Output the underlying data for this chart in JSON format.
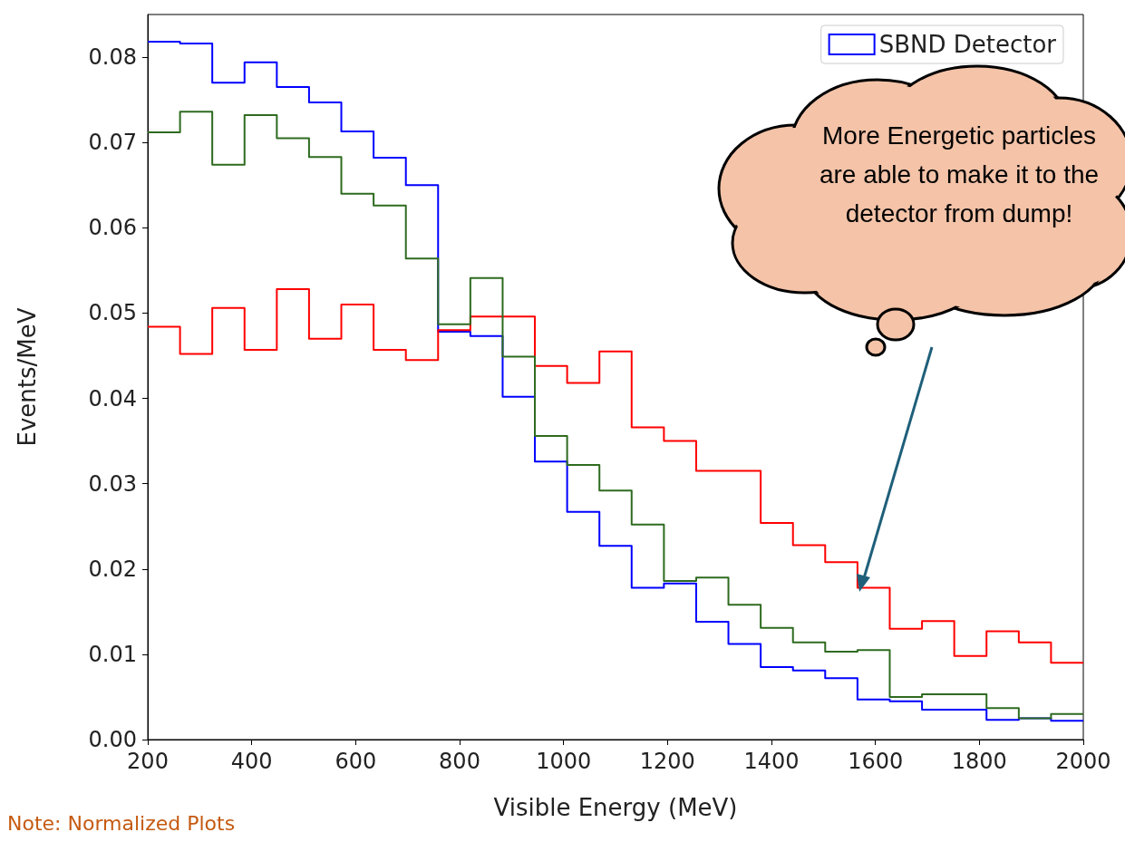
{
  "chart_data": {
    "type": "histogram",
    "xlabel": "Visible Energy (MeV)",
    "ylabel": "Events/MeV",
    "bins": [
      200,
      262.1,
      324.1,
      386.2,
      448.3,
      510.3,
      572.4,
      634.5,
      696.6,
      758.6,
      820.7,
      882.8,
      944.8,
      1006.9,
      1069.0,
      1131.0,
      1193.1,
      1255.2,
      1317.2,
      1379.3,
      1441.4,
      1503.4,
      1565.5,
      1627.6,
      1689.7,
      1751.7,
      1813.8,
      1875.9,
      1937.9,
      2000
    ],
    "series": [
      {
        "name": "SBND Detector",
        "color": "#0000ff",
        "values": [
          0.0818,
          0.0816,
          0.077,
          0.0794,
          0.0765,
          0.0747,
          0.0713,
          0.0682,
          0.065,
          0.0478,
          0.0473,
          0.0402,
          0.0326,
          0.0267,
          0.0227,
          0.0178,
          0.0183,
          0.0138,
          0.0112,
          0.0085,
          0.0081,
          0.0072,
          0.0047,
          0.0045,
          0.0035,
          0.0035,
          0.0023,
          0.0025,
          0.0022
        ]
      },
      {
        "color": "#ff0000",
        "values": [
          0.0484,
          0.0452,
          0.0506,
          0.0457,
          0.0528,
          0.047,
          0.051,
          0.0457,
          0.0445,
          0.048,
          0.0496,
          0.0496,
          0.0438,
          0.0418,
          0.0455,
          0.0366,
          0.035,
          0.0315,
          0.0315,
          0.0254,
          0.0228,
          0.0208,
          0.0178,
          0.013,
          0.0139,
          0.0098,
          0.0127,
          0.0114,
          0.009
        ]
      },
      {
        "color": "#2e6b1f",
        "values": [
          0.0712,
          0.0736,
          0.0674,
          0.0732,
          0.0705,
          0.0683,
          0.064,
          0.0626,
          0.0564,
          0.0487,
          0.0541,
          0.0449,
          0.0356,
          0.0322,
          0.0292,
          0.0252,
          0.0186,
          0.019,
          0.0158,
          0.0131,
          0.0114,
          0.0103,
          0.0105,
          0.005,
          0.0053,
          0.0053,
          0.0037,
          0.0025,
          0.003
        ]
      }
    ],
    "xlim": [
      200,
      2000
    ],
    "xticks": [
      200,
      400,
      600,
      800,
      1000,
      1200,
      1400,
      1600,
      1800,
      2000
    ],
    "ylim": [
      0,
      0.085
    ],
    "yticks": [
      {
        "value": 0,
        "label": "0.00"
      },
      {
        "value": 0.01,
        "label": "0.01"
      },
      {
        "value": 0.02,
        "label": "0.02"
      },
      {
        "value": 0.03,
        "label": "0.03"
      },
      {
        "value": 0.04,
        "label": "0.04"
      },
      {
        "value": 0.05,
        "label": "0.05"
      },
      {
        "value": 0.06,
        "label": "0.06"
      },
      {
        "value": 0.07,
        "label": "0.07"
      },
      {
        "value": 0.08,
        "label": "0.08"
      }
    ],
    "grid": false,
    "legend": "top right",
    "annotations": [
      "More Energetic particles are able to make it to the detector from dump!",
      "Note: Normalized Plots"
    ]
  }
}
